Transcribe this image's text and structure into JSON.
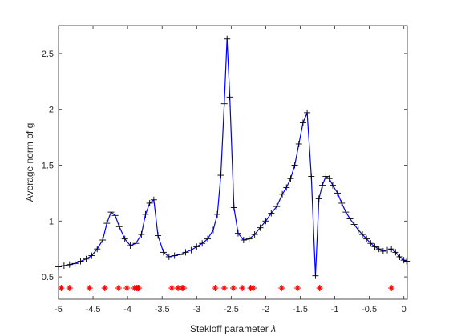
{
  "chart_data": {
    "type": "line",
    "title": "",
    "xlabel": "Stekloff parameter λ",
    "xlabel_text": "Stekloff parameter ",
    "xlabel_symbol": "λ",
    "ylabel": "Average norm of g",
    "xlim": [
      -5,
      0.05
    ],
    "ylim": [
      0.3,
      2.75
    ],
    "xticks": [
      -5,
      -4.5,
      -4,
      -3.5,
      -3,
      -2.5,
      -2,
      -1.5,
      -1,
      -0.5,
      0
    ],
    "xtick_labels": [
      "-5",
      "-4.5",
      "-4",
      "-3.5",
      "-3",
      "-2.5",
      "-2",
      "-1.5",
      "-1",
      "-0.5",
      "0"
    ],
    "yticks": [
      0.5,
      1,
      1.5,
      2,
      2.5
    ],
    "ytick_labels": [
      "0.5",
      "1",
      "1.5",
      "2",
      "2.5"
    ],
    "grid": false,
    "series": [
      {
        "color": "#0000ff",
        "marker": "+",
        "line": "solid",
        "x": [
          -5,
          -4.92,
          -4.84,
          -4.76,
          -4.68,
          -4.6,
          -4.52,
          -4.44,
          -4.36,
          -4.3,
          -4.24,
          -4.18,
          -4.12,
          -4.04,
          -3.96,
          -3.88,
          -3.8,
          -3.74,
          -3.68,
          -3.62,
          -3.56,
          -3.48,
          -3.4,
          -3.32,
          -3.24,
          -3.16,
          -3.08,
          -3.0,
          -2.92,
          -2.84,
          -2.76,
          -2.7,
          -2.65,
          -2.6,
          -2.56,
          -2.52,
          -2.46,
          -2.4,
          -2.32,
          -2.24,
          -2.16,
          -2.08,
          -2.0,
          -1.92,
          -1.84,
          -1.76,
          -1.7,
          -1.64,
          -1.58,
          -1.52,
          -1.46,
          -1.4,
          -1.34,
          -1.28,
          -1.23,
          -1.18,
          -1.13,
          -1.08,
          -1.03,
          -0.96,
          -0.9,
          -0.84,
          -0.78,
          -0.72,
          -0.66,
          -0.6,
          -0.54,
          -0.48,
          -0.42,
          -0.36,
          -0.3,
          -0.24,
          -0.18,
          -0.12,
          -0.06,
          0.0,
          0.04
        ],
        "y": [
          0.59,
          0.6,
          0.61,
          0.62,
          0.64,
          0.66,
          0.69,
          0.75,
          0.83,
          0.98,
          1.08,
          1.05,
          0.95,
          0.84,
          0.78,
          0.8,
          0.88,
          1.06,
          1.16,
          1.19,
          0.87,
          0.72,
          0.68,
          0.69,
          0.7,
          0.72,
          0.74,
          0.77,
          0.8,
          0.84,
          0.92,
          1.06,
          1.41,
          2.05,
          2.63,
          2.11,
          1.12,
          0.89,
          0.83,
          0.84,
          0.88,
          0.94,
          1.0,
          1.07,
          1.13,
          1.24,
          1.3,
          1.38,
          1.5,
          1.69,
          1.88,
          1.97,
          1.4,
          0.51,
          1.2,
          1.32,
          1.4,
          1.38,
          1.32,
          1.25,
          1.16,
          1.08,
          1.02,
          0.97,
          0.92,
          0.88,
          0.84,
          0.8,
          0.77,
          0.75,
          0.73,
          0.74,
          0.75,
          0.72,
          0.68,
          0.65,
          0.64
        ]
      },
      {
        "color": "#ff0000",
        "marker": "*",
        "line": "none",
        "x": [
          -4.96,
          -4.84,
          -4.55,
          -4.33,
          -4.13,
          -4.01,
          -3.9,
          -3.87,
          -3.85,
          -3.84,
          -3.36,
          -3.27,
          -3.21,
          -3.19,
          -2.73,
          -2.6,
          -2.47,
          -2.34,
          -2.22,
          -2.18,
          -1.77,
          -1.54,
          -1.22,
          -0.18
        ],
        "y": [
          0.4,
          0.4,
          0.4,
          0.4,
          0.4,
          0.4,
          0.4,
          0.4,
          0.4,
          0.4,
          0.4,
          0.4,
          0.4,
          0.4,
          0.4,
          0.4,
          0.4,
          0.4,
          0.4,
          0.4,
          0.4,
          0.4,
          0.4,
          0.4
        ]
      }
    ]
  }
}
